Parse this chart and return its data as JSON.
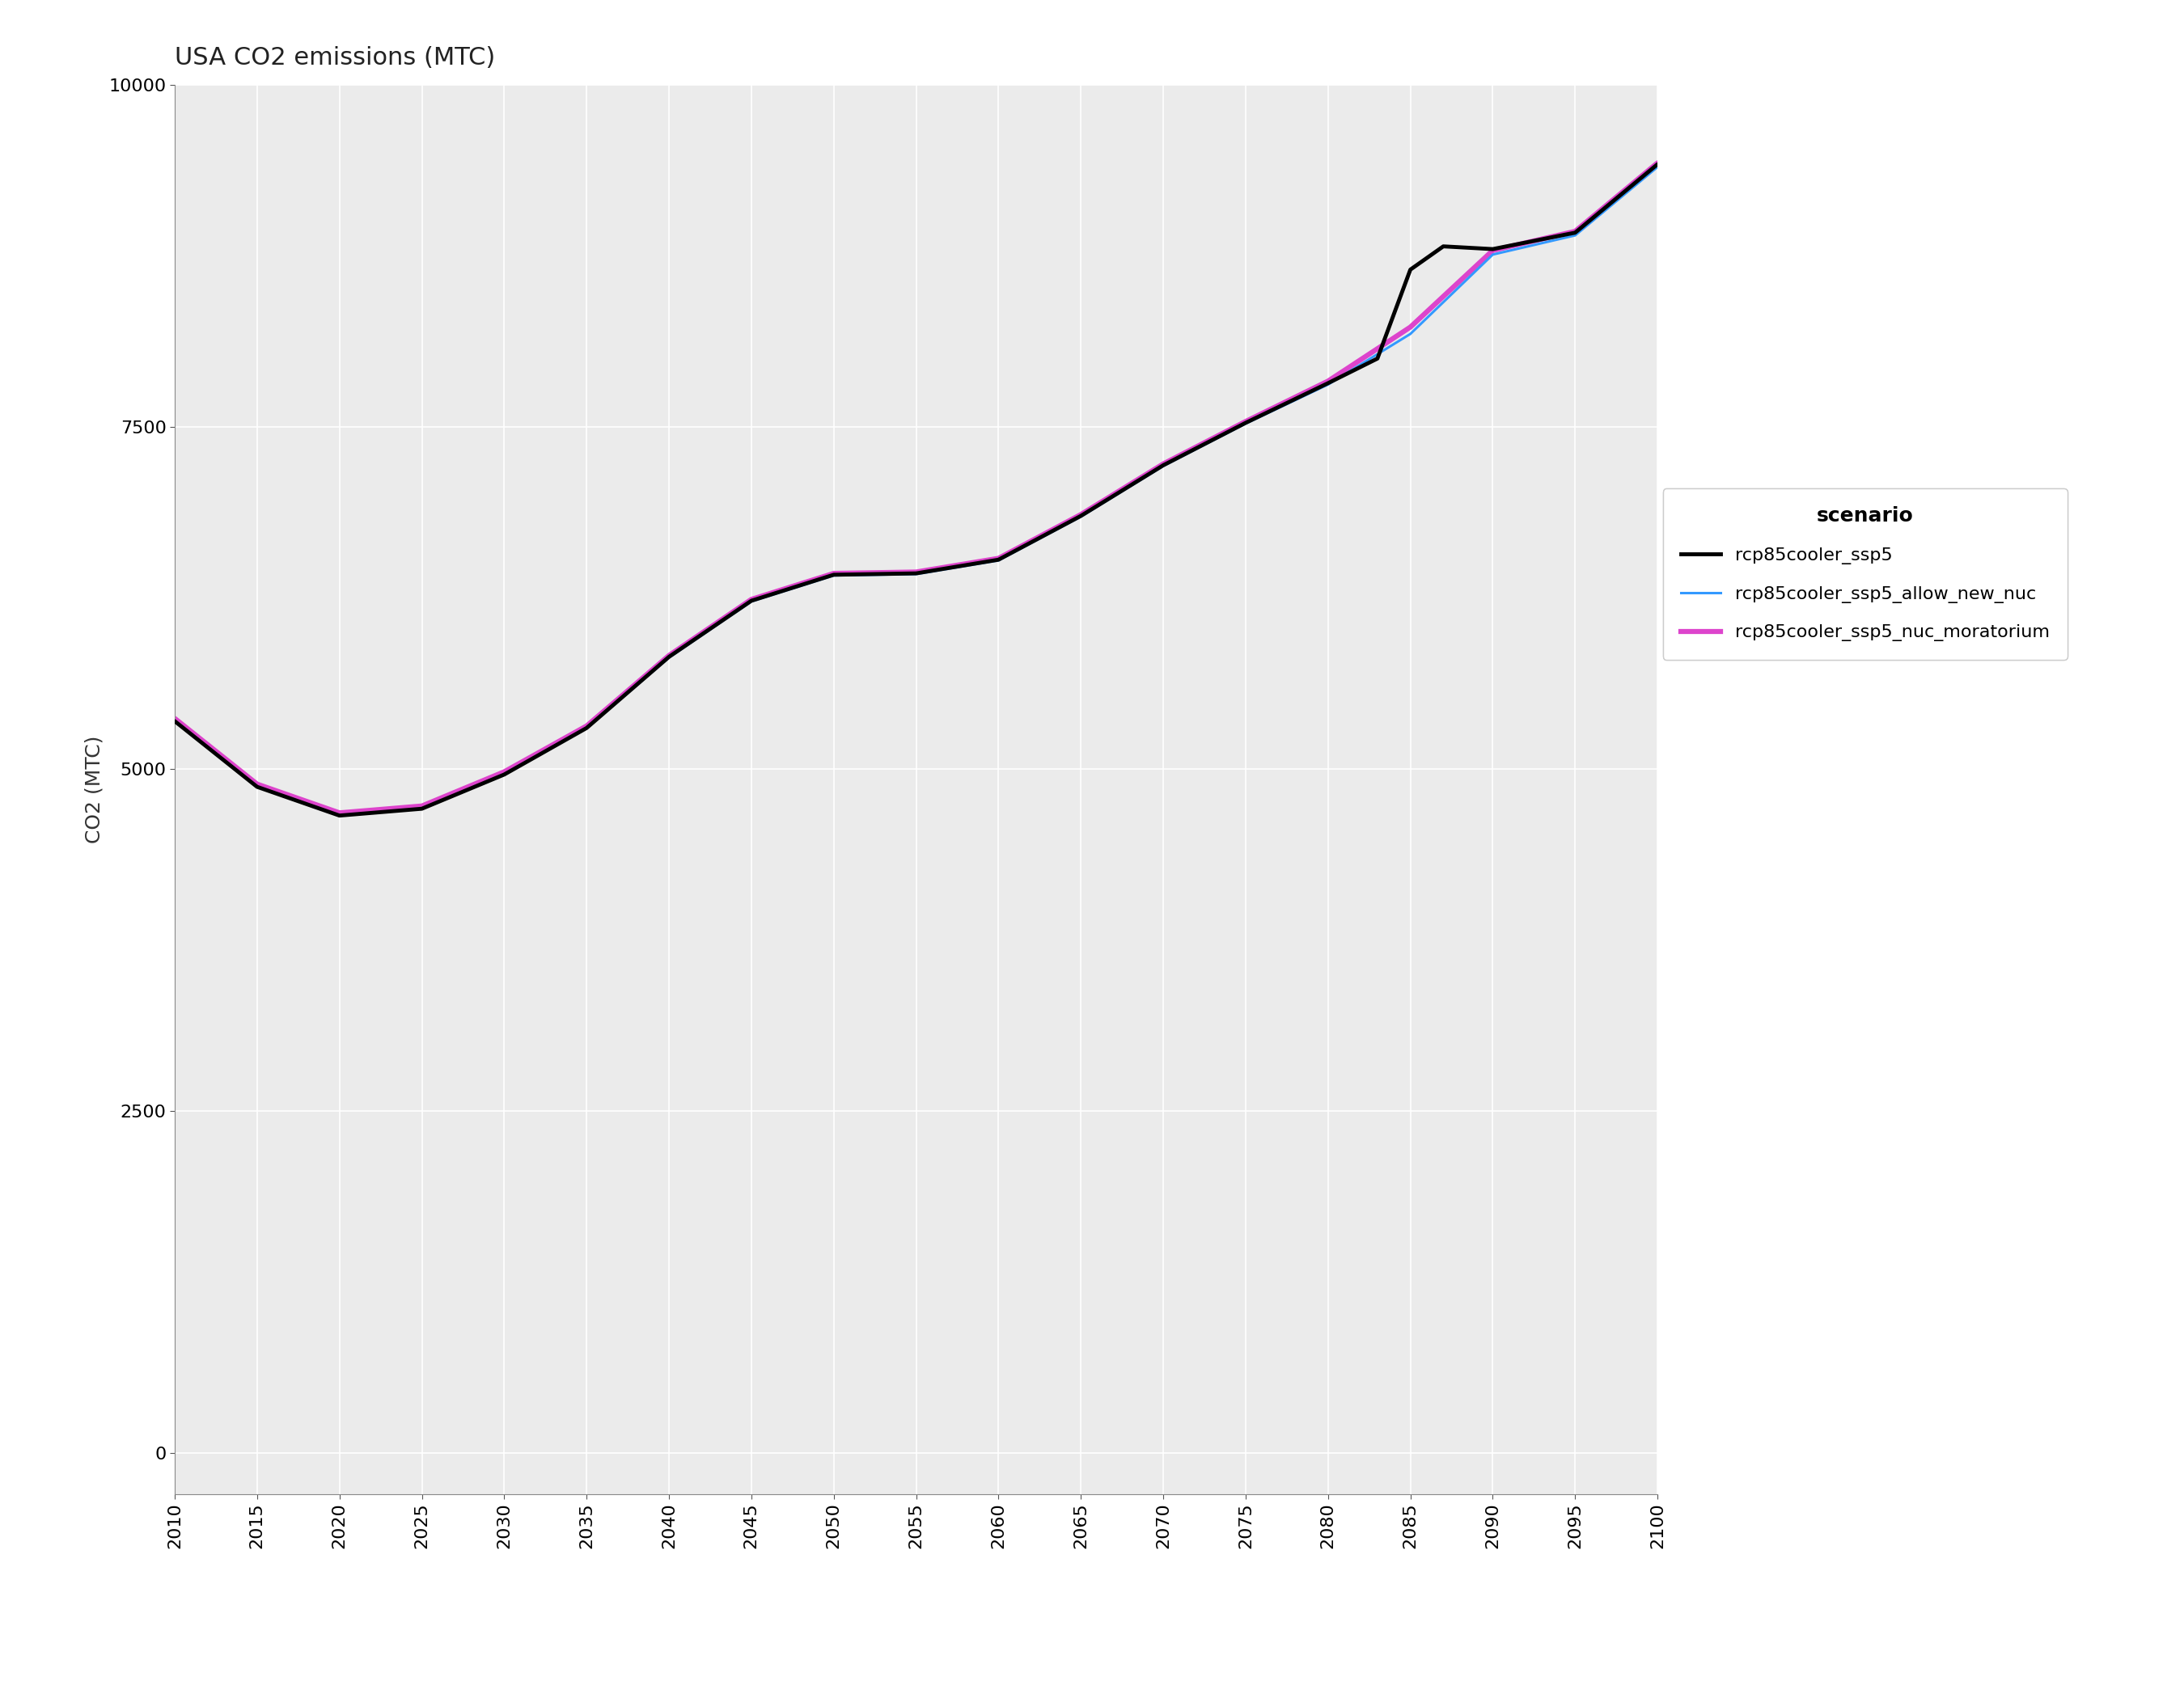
{
  "title": "USA CO2 emissions (MTC)",
  "xlabel": "",
  "ylabel": "CO2 (MTC)",
  "xlim": [
    2010,
    2100
  ],
  "ylim": [
    -300,
    10000
  ],
  "yticks": [
    0,
    2500,
    5000,
    7500,
    10000
  ],
  "xticks": [
    2010,
    2015,
    2020,
    2025,
    2030,
    2035,
    2040,
    2045,
    2050,
    2055,
    2060,
    2065,
    2070,
    2075,
    2080,
    2085,
    2090,
    2095,
    2100
  ],
  "panel_background": "#ebebeb",
  "figure_background": "#ffffff",
  "grid_color": "#ffffff",
  "scenarios": {
    "rcp85cooler_ssp5": {
      "color": "#000000",
      "linewidth": 3.5,
      "zorder": 3,
      "x": [
        2010,
        2015,
        2020,
        2025,
        2030,
        2035,
        2040,
        2045,
        2050,
        2055,
        2060,
        2065,
        2070,
        2075,
        2080,
        2083,
        2085,
        2087,
        2090,
        2095,
        2100
      ],
      "y": [
        5350,
        4870,
        4660,
        4710,
        4960,
        5300,
        5820,
        6230,
        6420,
        6430,
        6530,
        6850,
        7220,
        7530,
        7820,
        8000,
        8650,
        8820,
        8800,
        8920,
        9420
      ]
    },
    "rcp85cooler_ssp5_allow_new_nuc": {
      "color": "#3399ff",
      "linewidth": 2.2,
      "zorder": 2,
      "x": [
        2010,
        2015,
        2020,
        2025,
        2030,
        2035,
        2040,
        2045,
        2050,
        2055,
        2060,
        2065,
        2070,
        2075,
        2080,
        2085,
        2090,
        2095,
        2100
      ],
      "y": [
        5350,
        4870,
        4660,
        4710,
        4960,
        5300,
        5815,
        6225,
        6415,
        6425,
        6525,
        6845,
        7215,
        7525,
        7810,
        8180,
        8760,
        8900,
        9400
      ]
    },
    "rcp85cooler_ssp5_nuc_moratorium": {
      "color": "#dd44cc",
      "linewidth": 4.5,
      "zorder": 1,
      "x": [
        2010,
        2015,
        2020,
        2025,
        2030,
        2035,
        2040,
        2045,
        2050,
        2055,
        2060,
        2065,
        2070,
        2075,
        2080,
        2085,
        2090,
        2095,
        2100
      ],
      "y": [
        5370,
        4890,
        4680,
        4730,
        4980,
        5315,
        5830,
        6240,
        6430,
        6440,
        6540,
        6860,
        7230,
        7540,
        7835,
        8230,
        8790,
        8930,
        9430
      ]
    }
  },
  "legend_title": "scenario",
  "legend_labels": [
    "rcp85cooler_ssp5",
    "rcp85cooler_ssp5_allow_new_nuc",
    "rcp85cooler_ssp5_nuc_moratorium"
  ],
  "legend_colors": [
    "#000000",
    "#3399ff",
    "#dd44cc"
  ],
  "legend_linewidths": [
    3.5,
    2.2,
    4.5
  ],
  "title_fontsize": 22,
  "axis_label_fontsize": 18,
  "tick_fontsize": 16,
  "legend_fontsize": 16,
  "legend_title_fontsize": 18
}
